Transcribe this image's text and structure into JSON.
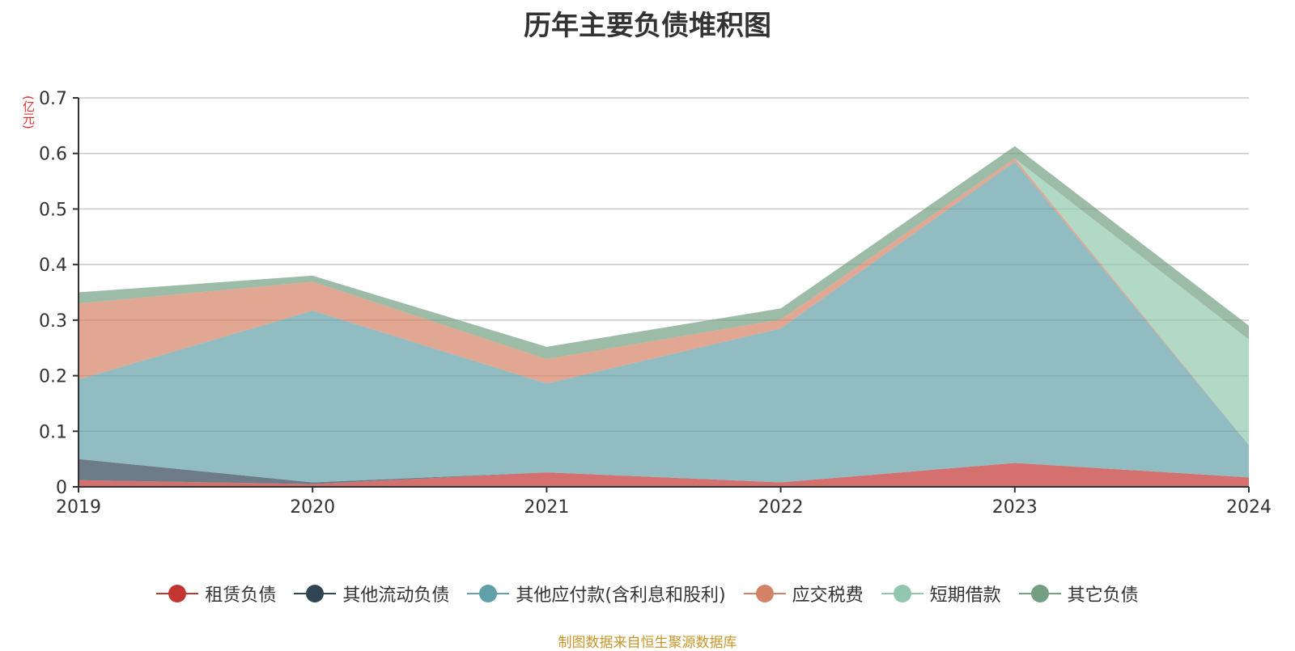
{
  "chart_data": {
    "type": "area",
    "stacked": true,
    "title": "历年主要负债堆积图",
    "ylabel": "(亿元)",
    "xlabel": "",
    "categories": [
      "2019",
      "2020",
      "2021",
      "2022",
      "2023",
      "2024"
    ],
    "ylim": [
      0,
      0.7
    ],
    "yticks": [
      "0",
      "0.1",
      "0.2",
      "0.3",
      "0.4",
      "0.5",
      "0.6",
      "0.7"
    ],
    "grid": true,
    "legend_position": "bottom",
    "series": [
      {
        "name": "租赁负债",
        "color": "#c23531",
        "values": [
          0.012,
          0.005,
          0.026,
          0.008,
          0.043,
          0.017
        ]
      },
      {
        "name": "其他流动负债",
        "color": "#2f4554",
        "values": [
          0.038,
          0.003,
          0.0,
          0.0,
          0.0,
          0.0
        ]
      },
      {
        "name": "其他应付款(含利息和股利)",
        "color": "#61a0a8",
        "values": [
          0.143,
          0.309,
          0.16,
          0.277,
          0.542,
          0.058
        ]
      },
      {
        "name": "应交税费",
        "color": "#d48265",
        "values": [
          0.137,
          0.052,
          0.044,
          0.016,
          0.006,
          0.0
        ]
      },
      {
        "name": "短期借款",
        "color": "#91c7ae",
        "values": [
          0.0,
          0.0,
          0.0,
          0.0,
          0.0,
          0.19
        ]
      },
      {
        "name": "其它负债",
        "color": "#749f83",
        "values": [
          0.02,
          0.011,
          0.022,
          0.02,
          0.022,
          0.025
        ]
      }
    ],
    "source": "制图数据来自恒生聚源数据库"
  }
}
